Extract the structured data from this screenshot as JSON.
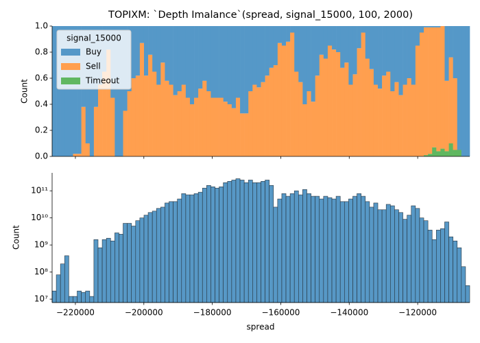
{
  "chart_data": [
    {
      "type": "stacked_histogram",
      "title": "TOPIXM: `Depth Imalance`(spread, signal_15000, 100, 2000)",
      "y_label": "Count",
      "legend_title": "signal_15000",
      "legend": "upper left",
      "bins": [
        -226800,
        -225580,
        -224360,
        -223140,
        -221920,
        -220700,
        -219480,
        -218260,
        -217040,
        -215820,
        -214600,
        -213380,
        -212160,
        -210940,
        -209720,
        -208500,
        -207280,
        -206060,
        -204840,
        -203620,
        -202400,
        -201180,
        -199960,
        -198740,
        -197520,
        -196300,
        -195080,
        -193860,
        -192640,
        -191420,
        -190200,
        -188980,
        -187760,
        -186540,
        -185320,
        -184100,
        -182880,
        -181660,
        -180440,
        -179220,
        -178000,
        -176780,
        -175560,
        -174340,
        -173120,
        -171900,
        -170680,
        -169460,
        -168240,
        -167020,
        -165800,
        -164580,
        -163360,
        -162140,
        -160920,
        -159700,
        -158480,
        -157260,
        -156040,
        -154820,
        -153600,
        -152380,
        -151160,
        -149940,
        -148720,
        -147500,
        -146280,
        -145060,
        -143840,
        -142620,
        -141400,
        -140180,
        -138960,
        -137740,
        -136520,
        -135300,
        -134080,
        -132860,
        -131640,
        -130420,
        -129200,
        -127980,
        -126760,
        -125540,
        -124320,
        -123100,
        -121880,
        -120660,
        -119440,
        -118220,
        -117000,
        -115780,
        -114560,
        -113340,
        -112120,
        -110900,
        -109680,
        -108460,
        -107240,
        -106020,
        -104800
      ],
      "series": [
        {
          "name": "Buy",
          "color": "#5598c8",
          "values": [
            1,
            1,
            1,
            1,
            1,
            0.98,
            0.98,
            0.62,
            0.9,
            1,
            0.62,
            0.45,
            0.35,
            0.18,
            0.55,
            1,
            1,
            0.65,
            0.5,
            0.4,
            0.38,
            0.13,
            0.38,
            0.22,
            0.35,
            0.45,
            0.28,
            0.42,
            0.45,
            0.53,
            0.5,
            0.45,
            0.55,
            0.6,
            0.55,
            0.48,
            0.42,
            0.5,
            0.55,
            0.55,
            0.55,
            0.58,
            0.6,
            0.63,
            0.55,
            0.67,
            0.67,
            0.5,
            0.45,
            0.47,
            0.43,
            0.38,
            0.32,
            0.3,
            0.13,
            0.15,
            0.12,
            0.05,
            0.35,
            0.43,
            0.6,
            0.5,
            0.58,
            0.38,
            0.22,
            0.25,
            0.15,
            0.18,
            0.2,
            0.32,
            0.28,
            0.45,
            0.37,
            0.17,
            0.05,
            0.25,
            0.33,
            0.45,
            0.48,
            0.38,
            0.35,
            0.5,
            0.43,
            0.53,
            0.45,
            0.4,
            0.45,
            0.15,
            0.05,
            0.01,
            0.01,
            0.01,
            0.01,
            0,
            0.42,
            0.24,
            0.4,
            0.95,
            1,
            1
          ]
        },
        {
          "name": "Sell",
          "color": "#ff9f4f",
          "values": [
            0,
            0,
            0,
            0,
            0,
            0.02,
            0.02,
            0.38,
            0.1,
            0,
            0.38,
            0.55,
            0.65,
            0.82,
            0.45,
            0,
            0,
            0.35,
            0.5,
            0.6,
            0.62,
            0.87,
            0.62,
            0.78,
            0.65,
            0.55,
            0.72,
            0.58,
            0.55,
            0.47,
            0.5,
            0.55,
            0.45,
            0.4,
            0.45,
            0.52,
            0.58,
            0.5,
            0.45,
            0.45,
            0.45,
            0.42,
            0.4,
            0.37,
            0.45,
            0.33,
            0.33,
            0.5,
            0.55,
            0.53,
            0.57,
            0.62,
            0.68,
            0.7,
            0.87,
            0.85,
            0.88,
            0.95,
            0.65,
            0.57,
            0.4,
            0.5,
            0.42,
            0.62,
            0.78,
            0.75,
            0.85,
            0.82,
            0.8,
            0.68,
            0.72,
            0.55,
            0.63,
            0.83,
            0.95,
            0.75,
            0.67,
            0.55,
            0.52,
            0.62,
            0.65,
            0.5,
            0.57,
            0.47,
            0.55,
            0.6,
            0.55,
            0.85,
            0.95,
            0.98,
            0.97,
            0.92,
            0.95,
            0.94,
            0.54,
            0.66,
            0.55,
            0,
            0,
            0
          ]
        },
        {
          "name": "Timeout",
          "color": "#60b760",
          "values": [
            0,
            0,
            0,
            0,
            0,
            0,
            0,
            0,
            0,
            0,
            0,
            0,
            0,
            0,
            0,
            0,
            0,
            0,
            0,
            0,
            0,
            0,
            0,
            0,
            0,
            0,
            0,
            0,
            0,
            0,
            0,
            0,
            0,
            0,
            0,
            0,
            0,
            0,
            0,
            0,
            0,
            0,
            0,
            0,
            0,
            0,
            0,
            0,
            0,
            0,
            0,
            0,
            0,
            0,
            0,
            0,
            0,
            0,
            0,
            0,
            0,
            0,
            0,
            0,
            0,
            0,
            0,
            0,
            0,
            0,
            0,
            0,
            0,
            0,
            0,
            0,
            0,
            0,
            0,
            0,
            0,
            0,
            0,
            0,
            0,
            0,
            0,
            0,
            0,
            0.01,
            0.02,
            0.07,
            0.04,
            0.06,
            0.04,
            0.1,
            0.05,
            0.05,
            0,
            0
          ]
        }
      ],
      "xlim": [
        -226800,
        -104800
      ],
      "ylim": [
        0,
        1
      ],
      "yticks": [
        {
          "value": 0,
          "label": "0.0"
        },
        0.2,
        0.4,
        0.6,
        0.8,
        {
          "value": 1,
          "label": "1.0"
        }
      ]
    },
    {
      "type": "histogram",
      "x_label": "spread",
      "y_label": "Count",
      "yscale": "log",
      "color": "#5798c6",
      "bins": [
        -226800,
        -225580,
        -224360,
        -223140,
        -221920,
        -220700,
        -219480,
        -218260,
        -217040,
        -215820,
        -214600,
        -213380,
        -212160,
        -210940,
        -209720,
        -208500,
        -207280,
        -206060,
        -204840,
        -203620,
        -202400,
        -201180,
        -199960,
        -198740,
        -197520,
        -196300,
        -195080,
        -193860,
        -192640,
        -191420,
        -190200,
        -188980,
        -187760,
        -186540,
        -185320,
        -184100,
        -182880,
        -181660,
        -180440,
        -179220,
        -178000,
        -176780,
        -175560,
        -174340,
        -173120,
        -171900,
        -170680,
        -169460,
        -168240,
        -167020,
        -165800,
        -164580,
        -163360,
        -162140,
        -160920,
        -159700,
        -158480,
        -157260,
        -156040,
        -154820,
        -153600,
        -152380,
        -151160,
        -149940,
        -148720,
        -147500,
        -146280,
        -145060,
        -143840,
        -142620,
        -141400,
        -140180,
        -138960,
        -137740,
        -136520,
        -135300,
        -134080,
        -132860,
        -131640,
        -130420,
        -129200,
        -127980,
        -126760,
        -125540,
        -124320,
        -123100,
        -121880,
        -120660,
        -119440,
        -118220,
        -117000,
        -115780,
        -114560,
        -113340,
        -112120,
        -110900,
        -109680,
        -108460,
        -107240,
        -106020,
        -104800
      ],
      "values": [
        20000000.0,
        79000000.0,
        200000000.0,
        400000000.0,
        12600000.0,
        12600000.0,
        20000000.0,
        17800000.0,
        20000000.0,
        12600000.0,
        1580000000.0,
        790000000.0,
        1580000000.0,
        1780000000.0,
        1410000000.0,
        2800000000.0,
        2500000000.0,
        6300000000.0,
        6300000000.0,
        5000000000.0,
        7900000000.0,
        10000000000.0,
        12600000000.0,
        15800000000.0,
        17800000000.0,
        22400000000.0,
        25000000000.0,
        35500000000.0,
        40000000000.0,
        40000000000.0,
        50000000000.0,
        79000000000.0,
        71000000000.0,
        71000000000.0,
        79000000000.0,
        89000000000.0,
        126000000000.0,
        158000000000.0,
        141000000000.0,
        126000000000.0,
        141000000000.0,
        200000000000.0,
        224000000000.0,
        250000000000.0,
        280000000000.0,
        250000000000.0,
        200000000000.0,
        250000000000.0,
        200000000000.0,
        200000000000.0,
        224000000000.0,
        250000000000.0,
        158000000000.0,
        25000000000.0,
        50000000000.0,
        79000000000.0,
        63000000000.0,
        79000000000.0,
        100000000000.0,
        71000000000.0,
        112000000000.0,
        79000000000.0,
        63000000000.0,
        63000000000.0,
        50000000000.0,
        63000000000.0,
        56000000000.0,
        50000000000.0,
        63000000000.0,
        40000000000.0,
        40000000000.0,
        50000000000.0,
        63000000000.0,
        79000000000.0,
        63000000000.0,
        40000000000.0,
        25000000000.0,
        35500000000.0,
        20000000000.0,
        20000000000.0,
        31600000000.0,
        28000000000.0,
        20000000000.0,
        15800000000.0,
        8900000000.0,
        12600000000.0,
        28000000000.0,
        22400000000.0,
        10000000000.0,
        7900000000.0,
        3550000000.0,
        1580000000.0,
        3550000000.0,
        4000000000.0,
        7100000000.0,
        2000000000.0,
        1410000000.0,
        790000000.0,
        158000000.0,
        31600000.0
      ],
      "xlim": [
        -226800,
        -104800
      ],
      "ylim": [
        7500000.0,
        460000000000.0
      ],
      "xticks": [
        {
          "value": -220000,
          "label": "−220000"
        },
        {
          "value": -200000,
          "label": "−200000"
        },
        {
          "value": -180000,
          "label": "−180000"
        },
        {
          "value": -160000,
          "label": "−160000"
        },
        {
          "value": -140000,
          "label": "−140000"
        },
        {
          "value": -120000,
          "label": "−120000"
        }
      ],
      "yticks": [
        {
          "value": 10000000,
          "label": "10⁷"
        },
        {
          "value": 100000000,
          "label": "10⁸"
        },
        {
          "value": 1000000000,
          "label": "10⁹"
        },
        {
          "value": 10000000000,
          "label": "10¹⁰"
        },
        {
          "value": 100000000000,
          "label": "10¹¹"
        }
      ]
    }
  ]
}
